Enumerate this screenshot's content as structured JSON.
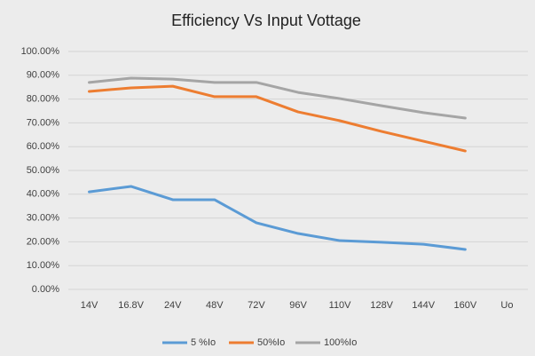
{
  "chart_data": {
    "type": "line",
    "title": "Efficiency Vs Input Vottage",
    "categories": [
      "14V",
      "16.8V",
      "24V",
      "48V",
      "72V",
      "96V",
      "110V",
      "128V",
      "144V",
      "160V",
      "Uo"
    ],
    "series": [
      {
        "name": "5 %Io",
        "color": "#5b9bd5",
        "values": [
          41,
          43.3,
          37.7,
          37.7,
          28,
          23.5,
          20.5,
          19.8,
          19,
          16.8,
          null
        ]
      },
      {
        "name": "50%Io",
        "color": "#ed7d31",
        "values": [
          83.2,
          84.7,
          85.4,
          81,
          81,
          74.6,
          70.9,
          66.4,
          62.3,
          58.2,
          null
        ]
      },
      {
        "name": "100%Io",
        "color": "#a5a5a5",
        "values": [
          87,
          88.8,
          88.4,
          87,
          87,
          82.8,
          80.2,
          77.2,
          74.3,
          72,
          null
        ]
      }
    ],
    "ylim": [
      0,
      100
    ],
    "yticks": [
      {
        "value": 0,
        "label": "0.00%"
      },
      {
        "value": 10,
        "label": "10.00%"
      },
      {
        "value": 20,
        "label": "20.00%"
      },
      {
        "value": 30,
        "label": "30.00%"
      },
      {
        "value": 40,
        "label": "40.00%"
      },
      {
        "value": 50,
        "label": "50.00%"
      },
      {
        "value": 60,
        "label": "60.00%"
      },
      {
        "value": 70,
        "label": "70.00%"
      },
      {
        "value": 80,
        "label": "80.00%"
      },
      {
        "value": 90,
        "label": "90.00%"
      },
      {
        "value": 100,
        "label": "100.00%"
      }
    ],
    "grid": true,
    "legend": "bottom"
  }
}
